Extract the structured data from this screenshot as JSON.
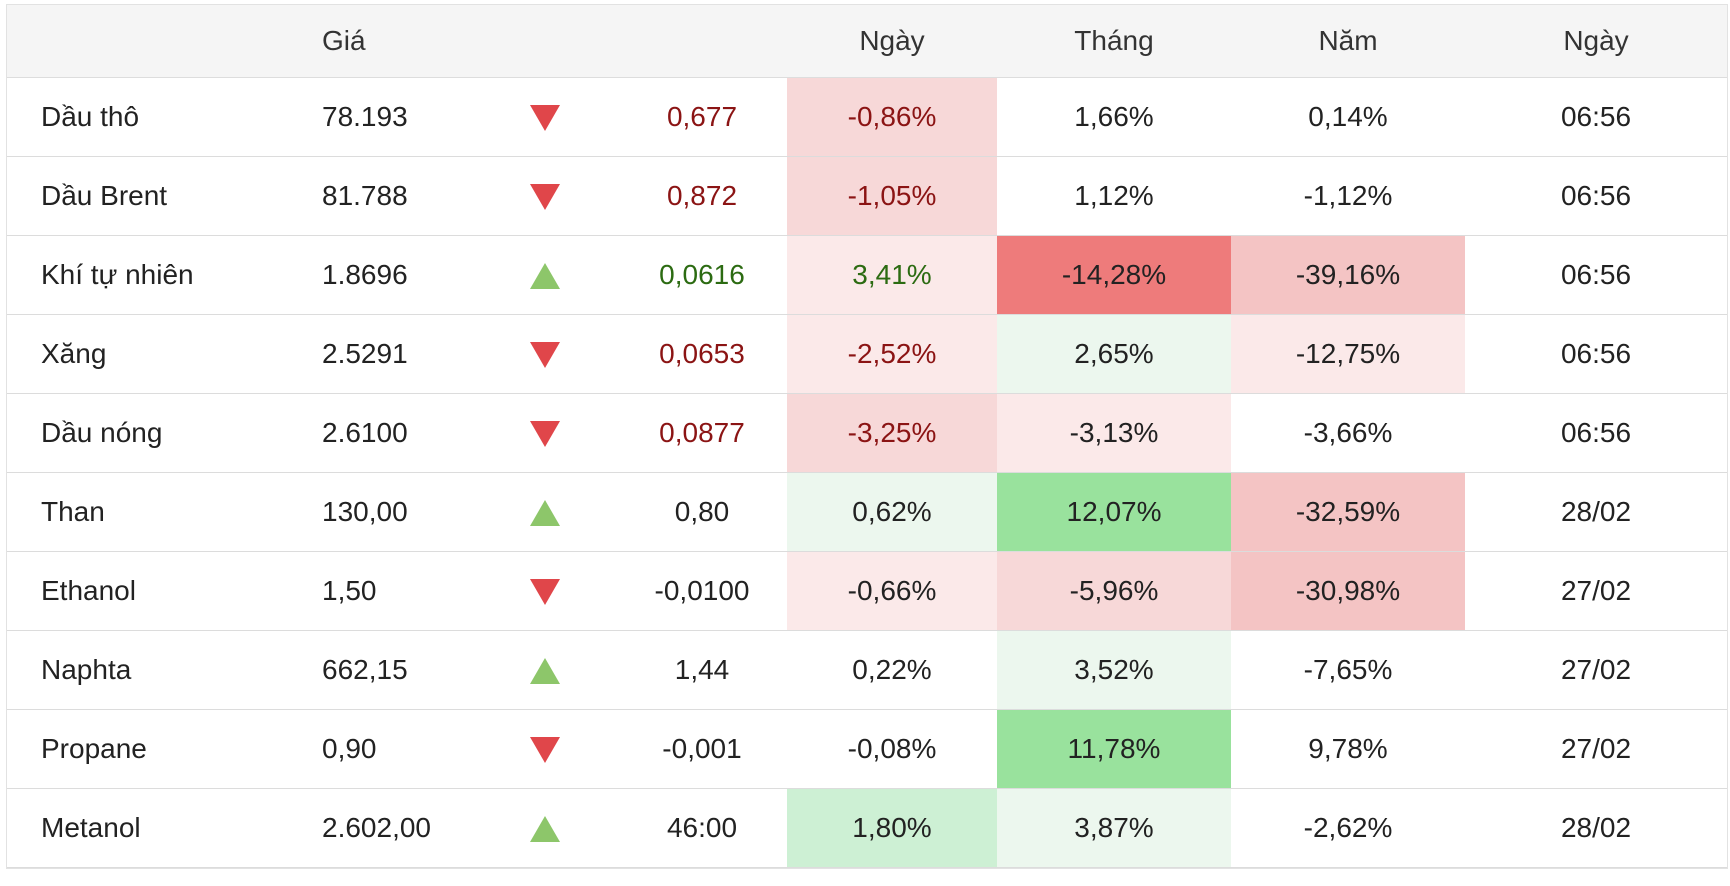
{
  "headers": {
    "price": "Giá",
    "day": "Ngày",
    "month": "Tháng",
    "year": "Năm",
    "date": "Ngày"
  },
  "colors": {
    "red_strong": "#ee7b7b",
    "red_medium": "#f4c4c4",
    "red_light": "#f7d8d8",
    "red_faint": "#fbe9e9",
    "green_strong": "#99e29d",
    "green_light": "#cdf0d4",
    "green_faint": "#ecf7ee",
    "neg_text": "#8b1414",
    "pos_text": "#2c6b12"
  },
  "rows": [
    {
      "name": "Dầu thô",
      "price": "78.193",
      "dir": "down",
      "change": "0,677",
      "change_tone": "neg",
      "day": "-0,86%",
      "day_tone": "neg",
      "day_bg": "red_light",
      "month": "1,66%",
      "month_bg": "",
      "year": "0,14%",
      "year_bg": "",
      "time": "06:56"
    },
    {
      "name": "Dầu Brent",
      "price": "81.788",
      "dir": "down",
      "change": "0,872",
      "change_tone": "neg",
      "day": "-1,05%",
      "day_tone": "neg",
      "day_bg": "red_light",
      "month": "1,12%",
      "month_bg": "",
      "year": "-1,12%",
      "year_bg": "",
      "time": "06:56"
    },
    {
      "name": "Khí tự nhiên",
      "price": "1.8696",
      "dir": "up",
      "change": "0,0616",
      "change_tone": "pos",
      "day": "3,41%",
      "day_tone": "pos",
      "day_bg": "red_faint",
      "month": "-14,28%",
      "month_bg": "red_strong",
      "year": "-39,16%",
      "year_bg": "red_medium",
      "time": "06:56"
    },
    {
      "name": "Xăng",
      "price": "2.5291",
      "dir": "down",
      "change": "0,0653",
      "change_tone": "neg",
      "day": "-2,52%",
      "day_tone": "neg",
      "day_bg": "red_faint",
      "month": "2,65%",
      "month_bg": "green_faint",
      "year": "-12,75%",
      "year_bg": "red_faint",
      "time": "06:56"
    },
    {
      "name": "Dầu nóng",
      "price": "2.6100",
      "dir": "down",
      "change": "0,0877",
      "change_tone": "neg",
      "day": "-3,25%",
      "day_tone": "neg",
      "day_bg": "red_light",
      "month": "-3,13%",
      "month_bg": "red_faint",
      "year": "-3,66%",
      "year_bg": "",
      "time": "06:56"
    },
    {
      "name": "Than",
      "price": "130,00",
      "dir": "up",
      "change": "0,80",
      "change_tone": "",
      "day": "0,62%",
      "day_tone": "",
      "day_bg": "green_faint",
      "month": "12,07%",
      "month_bg": "green_strong",
      "year": "-32,59%",
      "year_bg": "red_medium",
      "time": "28/02"
    },
    {
      "name": "Ethanol",
      "price": "1,50",
      "dir": "down",
      "change": "-0,0100",
      "change_tone": "",
      "day": "-0,66%",
      "day_tone": "",
      "day_bg": "red_faint",
      "month": "-5,96%",
      "month_bg": "red_light",
      "year": "-30,98%",
      "year_bg": "red_medium",
      "time": "27/02"
    },
    {
      "name": "Naphta",
      "price": "662,15",
      "dir": "up",
      "change": "1,44",
      "change_tone": "",
      "day": "0,22%",
      "day_tone": "",
      "day_bg": "",
      "month": "3,52%",
      "month_bg": "green_faint",
      "year": "-7,65%",
      "year_bg": "",
      "time": "27/02"
    },
    {
      "name": "Propane",
      "price": "0,90",
      "dir": "down",
      "change": "-0,001",
      "change_tone": "",
      "day": "-0,08%",
      "day_tone": "",
      "day_bg": "",
      "month": "11,78%",
      "month_bg": "green_strong",
      "year": "9,78%",
      "year_bg": "",
      "time": "27/02"
    },
    {
      "name": "Metanol",
      "price": "2.602,00",
      "dir": "up",
      "change": "46:00",
      "change_tone": "",
      "day": "1,80%",
      "day_tone": "",
      "day_bg": "green_light",
      "month": "3,87%",
      "month_bg": "green_faint",
      "year": "-2,62%",
      "year_bg": "",
      "time": "28/02"
    }
  ]
}
